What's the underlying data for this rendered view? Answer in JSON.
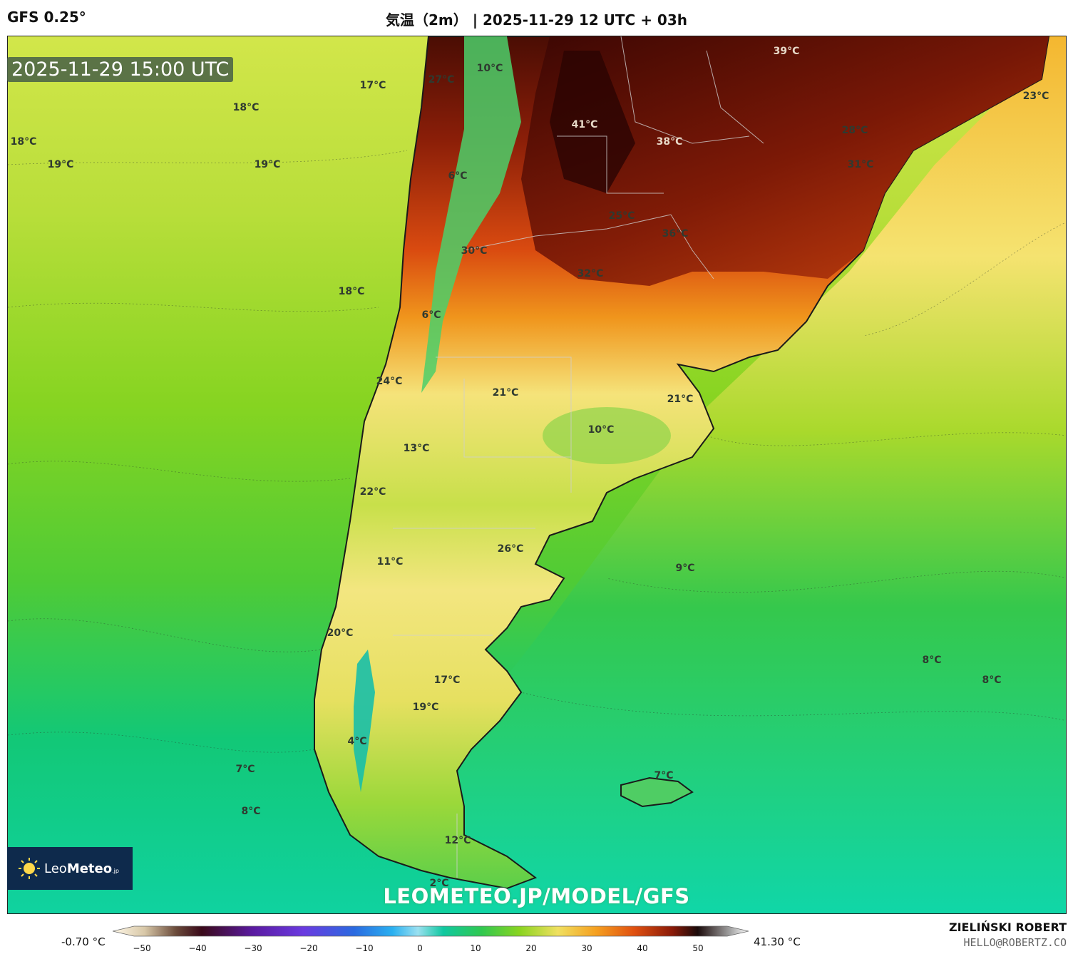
{
  "header": {
    "model": "GFS 0.25°",
    "title": "気温（2m） | 2025-11-29 12 UTC + 03h"
  },
  "valid_time": "2025-11-29 15:00 UTC",
  "labels": [
    "17°C",
    "18°C",
    "18°C",
    "19°C",
    "19°C",
    "27°C",
    "10°C",
    "41°C",
    "39°C",
    "38°C",
    "28°C",
    "31°C",
    "23°C",
    "6°C",
    "25°C",
    "36°C",
    "30°C",
    "32°C",
    "18°C",
    "6°C",
    "24°C",
    "21°C",
    "21°C",
    "10°C",
    "13°C",
    "22°C",
    "26°C",
    "11°C",
    "9°C",
    "20°C",
    "8°C",
    "8°C",
    "17°C",
    "19°C",
    "4°C",
    "7°C",
    "7°C",
    "8°C",
    "12°C",
    "2°C"
  ],
  "logo": {
    "light": "Leo",
    "bold": "Meteo",
    "suffix": ".jp"
  },
  "site_url": "LEOMETEO.JP/MODEL/GFS",
  "legend": {
    "min": "-0.70 °C",
    "max": "41.30 °C",
    "ticks": [
      "−50",
      "−40",
      "−30",
      "−20",
      "−10",
      "0",
      "10",
      "20",
      "30",
      "40",
      "50"
    ]
  },
  "author": {
    "name": "ZIELIŃSKI ROBERT",
    "email": "HELLO@ROBERTZ.CO"
  },
  "colors": {
    "hot": "#7a1a08",
    "warm": "#f07a10",
    "mild": "#f3e46a",
    "cool": "#7fd51e",
    "cold": "#0fd08c"
  }
}
